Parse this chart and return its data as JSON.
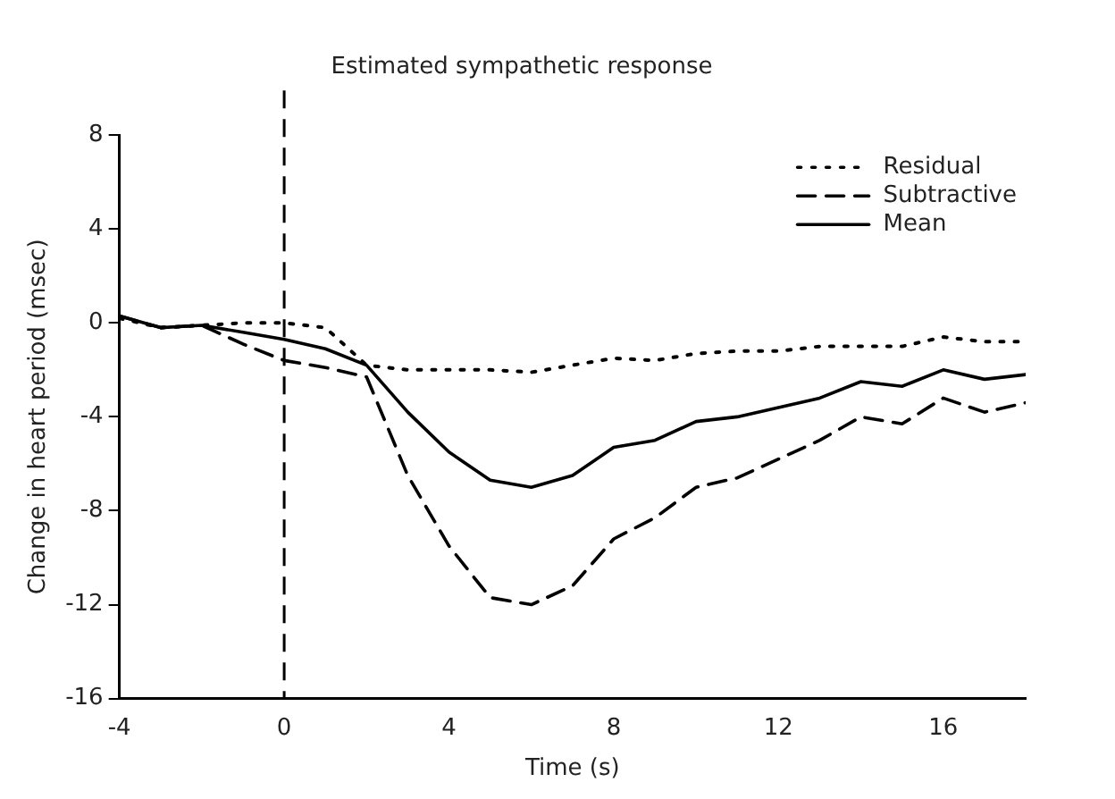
{
  "chart_data": {
    "type": "line",
    "title": "Estimated sympathetic response",
    "xlabel": "Time (s)",
    "ylabel": "Change in heart period (msec)",
    "x": [
      -4,
      -3,
      -2,
      -1,
      0,
      1,
      2,
      3,
      4,
      5,
      6,
      7,
      8,
      9,
      10,
      11,
      12,
      13,
      14,
      15,
      16,
      17,
      18
    ],
    "series": [
      {
        "name": "Residual",
        "color": "#000000",
        "line_style": "dotted",
        "values": [
          0.2,
          -0.2,
          -0.1,
          0,
          0,
          -0.2,
          -1.8,
          -2.0,
          -2.0,
          -2.0,
          -2.1,
          -1.8,
          -1.5,
          -1.6,
          -1.3,
          -1.2,
          -1.2,
          -1.0,
          -1.0,
          -1.0,
          -0.6,
          -0.8,
          -0.8
        ]
      },
      {
        "name": "Subtractive",
        "color": "#000000",
        "line_style": "dashed",
        "values": [
          0.3,
          -0.2,
          -0.1,
          -0.9,
          -1.6,
          -1.9,
          -2.3,
          -6.5,
          -9.5,
          -11.7,
          -12.0,
          -11.2,
          -9.2,
          -8.3,
          -7.0,
          -6.6,
          -5.8,
          -5.0,
          -4.0,
          -4.3,
          -3.2,
          -3.8,
          -3.4
        ]
      },
      {
        "name": "Mean",
        "color": "#000000",
        "line_style": "solid",
        "values": [
          0.3,
          -0.2,
          -0.1,
          -0.4,
          -0.7,
          -1.1,
          -1.8,
          -3.8,
          -5.5,
          -6.7,
          -7.0,
          -6.5,
          -5.3,
          -5.0,
          -4.2,
          -4.0,
          -3.6,
          -3.2,
          -2.5,
          -2.7,
          -2.0,
          -2.4,
          -2.2
        ]
      }
    ],
    "xlim": [
      -4,
      18
    ],
    "xticks": [
      -4,
      0,
      4,
      8,
      12,
      16
    ],
    "ylim": [
      -16,
      8
    ],
    "yticks": [
      -16,
      -12,
      -8,
      -4,
      0,
      4,
      8
    ],
    "ref_lines": [
      {
        "axis": "x",
        "value": 0,
        "line_style": "dashed",
        "color": "#000000"
      }
    ],
    "legend": "top right",
    "grid": false,
    "marker": "none"
  }
}
